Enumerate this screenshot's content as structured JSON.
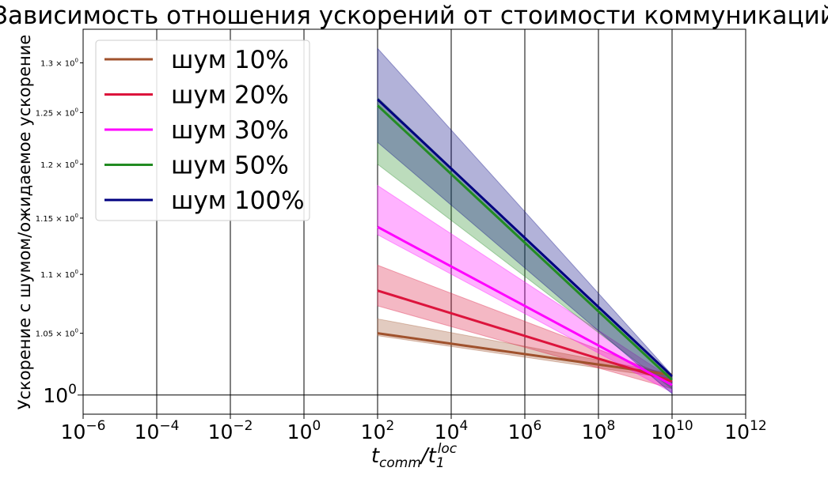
{
  "chart_data": {
    "type": "line",
    "title": "Зависимость отношения ускорений от стоимости коммуникаций",
    "xlabel": "t_comm/t_1^loc",
    "ylabel": "Ускорение с шумом/ожидаемое ускорение",
    "xscale": "log",
    "yscale": "log",
    "xlim": [
      1e-06,
      1000000000000.0
    ],
    "ylim": [
      0.985,
      1.335
    ],
    "x_ticks": [
      {
        "base": "10",
        "exp": "−6",
        "value": 1e-06
      },
      {
        "base": "10",
        "exp": "−4",
        "value": 0.0001
      },
      {
        "base": "10",
        "exp": "−2",
        "value": 0.01
      },
      {
        "base": "10",
        "exp": "0",
        "value": 1
      },
      {
        "base": "10",
        "exp": "2",
        "value": 100.0
      },
      {
        "base": "10",
        "exp": "4",
        "value": 10000.0
      },
      {
        "base": "10",
        "exp": "6",
        "value": 1000000.0
      },
      {
        "base": "10",
        "exp": "8",
        "value": 100000000.0
      },
      {
        "base": "10",
        "exp": "10",
        "value": 10000000000.0
      },
      {
        "base": "10",
        "exp": "12",
        "value": 1000000000000.0
      }
    ],
    "y_major_ticks": [
      {
        "base": "10",
        "exp": "0",
        "value": 1.0
      }
    ],
    "y_minor_ticks": [
      {
        "label": "1.05 × 10",
        "exp": "0",
        "value": 1.05
      },
      {
        "label": "1.1 × 10",
        "exp": "0",
        "value": 1.1
      },
      {
        "label": "1.15 × 10",
        "exp": "0",
        "value": 1.15
      },
      {
        "label": "1.2 × 10",
        "exp": "0",
        "value": 1.2
      },
      {
        "label": "1.25 × 10",
        "exp": "0",
        "value": 1.25
      },
      {
        "label": "1.3 × 10",
        "exp": "0",
        "value": 1.3
      }
    ],
    "grid": "vertical lines at major x ticks, horizontal line at y=10^0",
    "legend_position": "upper-left",
    "x": [
      100.0,
      10000000000.0
    ],
    "series": [
      {
        "name": "шум 10%",
        "color": "#a0522d",
        "values": [
          1.05,
          1.016
        ],
        "lower": [
          1.048,
          1.013
        ],
        "upper": [
          1.062,
          1.017
        ]
      },
      {
        "name": "шум 20%",
        "color": "#dc143c",
        "values": [
          1.086,
          1.011
        ],
        "lower": [
          1.073,
          1.005
        ],
        "upper": [
          1.108,
          1.014
        ]
      },
      {
        "name": "шум 30%",
        "color": "#ff00ff",
        "values": [
          1.142,
          1.008
        ],
        "lower": [
          1.135,
          1.002
        ],
        "upper": [
          1.18,
          1.013
        ]
      },
      {
        "name": "шум 50%",
        "color": "#228b22",
        "values": [
          1.257,
          1.012
        ],
        "lower": [
          1.2,
          1.005
        ],
        "upper": [
          1.265,
          1.014
        ]
      },
      {
        "name": "шум 100%",
        "color": "#000080",
        "values": [
          1.263,
          1.015
        ],
        "lower": [
          1.221,
          1.001
        ],
        "upper": [
          1.315,
          1.016
        ]
      }
    ]
  }
}
